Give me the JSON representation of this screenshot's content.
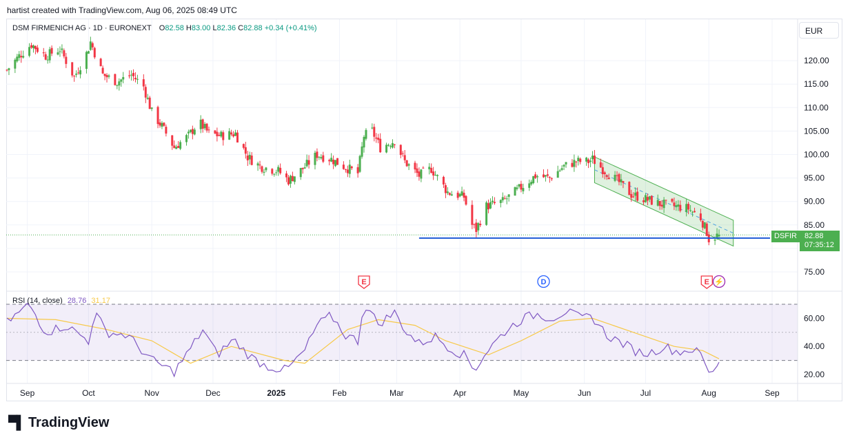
{
  "header": {
    "text": "hartist created with TradingView.com, Aug 06, 2025 08:49 UTC"
  },
  "legend": {
    "symbol": "DSM FIRMENICH AG · 1D · EURONEXT",
    "o_label": "O",
    "o": "82.58",
    "h_label": "H",
    "h": "83.00",
    "l_label": "L",
    "l": "82.36",
    "c_label": "C",
    "c": "82.88",
    "change": "+0.34 (+0.41%)"
  },
  "currency": "EUR",
  "last_price": {
    "ticker": "DSFIR",
    "price": "82.88",
    "countdown": "07:35:12"
  },
  "rsi_legend": {
    "label": "RSI (14, close)",
    "rsi": "28.76",
    "ma": "31.17"
  },
  "events": [
    {
      "icon": "earnings-icon",
      "letter": "E",
      "date": "2025-02-13",
      "color": "#f23645"
    },
    {
      "icon": "dividend-icon",
      "letter": "D",
      "date": "2025-05-12",
      "color": "#2962ff"
    },
    {
      "icon": "earnings-icon",
      "letter": "E",
      "date": "2025-07-31",
      "color": "#f23645"
    },
    {
      "icon": "split-icon",
      "letter": "⚡",
      "date": "2025-08-06",
      "color": "#9c27b0"
    }
  ],
  "colors": {
    "up": "#4caf50",
    "down": "#f23645",
    "rsi": "#7e57c2",
    "rsi_ma": "#f7c948",
    "support": "#1e5ad6",
    "channel": "#4caf50"
  },
  "logo": {
    "text": "TradingView"
  },
  "chart_data": {
    "type": "candlestick",
    "price_axis": {
      "ticks": [
        "75.00",
        "80.00",
        "85.00",
        "90.00",
        "95.00",
        "100.00",
        "105.00",
        "110.00",
        "115.00",
        "120.00"
      ],
      "range": [
        71.5,
        127
      ]
    },
    "time_axis": {
      "labels": [
        "Sep",
        "Oct",
        "Nov",
        "Dec",
        "2025",
        "Feb",
        "Mar",
        "Apr",
        "May",
        "Jun",
        "Jul",
        "Aug",
        "Sep"
      ]
    },
    "close_path": [
      [
        "2024-08-22",
        118.0
      ],
      [
        "2024-08-28",
        121.0
      ],
      [
        "2024-09-03",
        123.5
      ],
      [
        "2024-09-10",
        121.0
      ],
      [
        "2024-09-17",
        122.5
      ],
      [
        "2024-09-24",
        116.5
      ],
      [
        "2024-09-30",
        121.5
      ],
      [
        "2024-10-02",
        124.0
      ],
      [
        "2024-10-08",
        117.0
      ],
      [
        "2024-10-15",
        115.5
      ],
      [
        "2024-10-22",
        117.0
      ],
      [
        "2024-10-28",
        114.5
      ],
      [
        "2024-11-01",
        109.0
      ],
      [
        "2024-11-06",
        106.0
      ],
      [
        "2024-11-12",
        101.5
      ],
      [
        "2024-11-19",
        104.0
      ],
      [
        "2024-11-24",
        107.0
      ],
      [
        "2024-11-29",
        104.5
      ],
      [
        "2024-12-05",
        104.0
      ],
      [
        "2024-12-12",
        104.5
      ],
      [
        "2024-12-18",
        99.5
      ],
      [
        "2024-12-24",
        97.5
      ],
      [
        "2025-01-02",
        96.5
      ],
      [
        "2025-01-07",
        94.5
      ],
      [
        "2025-01-14",
        97.0
      ],
      [
        "2025-01-21",
        100.0
      ],
      [
        "2025-01-28",
        99.0
      ],
      [
        "2025-02-03",
        97.5
      ],
      [
        "2025-02-10",
        96.0
      ],
      [
        "2025-02-13",
        104.0
      ],
      [
        "2025-02-17",
        105.0
      ],
      [
        "2025-02-21",
        101.5
      ],
      [
        "2025-02-28",
        103.0
      ],
      [
        "2025-03-05",
        98.5
      ],
      [
        "2025-03-12",
        95.5
      ],
      [
        "2025-03-18",
        97.0
      ],
      [
        "2025-03-26",
        92.0
      ],
      [
        "2025-04-03",
        91.0
      ],
      [
        "2025-04-07",
        85.0
      ],
      [
        "2025-04-09",
        84.0
      ],
      [
        "2025-04-14",
        89.0
      ],
      [
        "2025-04-22",
        90.0
      ],
      [
        "2025-05-01",
        93.0
      ],
      [
        "2025-05-08",
        95.5
      ],
      [
        "2025-05-15",
        95.0
      ],
      [
        "2025-05-22",
        97.5
      ],
      [
        "2025-05-28",
        98.5
      ],
      [
        "2025-06-03",
        98.5
      ],
      [
        "2025-06-05",
        99.0
      ],
      [
        "2025-06-11",
        96.5
      ],
      [
        "2025-06-17",
        94.5
      ],
      [
        "2025-06-24",
        91.5
      ],
      [
        "2025-07-01",
        90.5
      ],
      [
        "2025-07-08",
        89.5
      ],
      [
        "2025-07-15",
        89.0
      ],
      [
        "2025-07-22",
        88.5
      ],
      [
        "2025-07-28",
        86.5
      ],
      [
        "2025-07-31",
        83.5
      ],
      [
        "2025-08-01",
        82.0
      ],
      [
        "2025-08-06",
        82.88
      ]
    ],
    "support_line": {
      "value": 82.2,
      "from": "2025-03-12",
      "to": "2025-08-31"
    },
    "descending_channel": {
      "upper": [
        [
          "2025-06-06",
          99.5
        ],
        [
          "2025-08-13",
          86.0
        ]
      ],
      "lower": [
        [
          "2025-06-06",
          94.0
        ],
        [
          "2025-08-13",
          80.5
        ]
      ]
    },
    "rsi": {
      "axis_ticks": [
        "20.00",
        "40.00",
        "60.00"
      ],
      "upper_band": 70,
      "middle_band": 50,
      "lower_band": 30,
      "path": [
        [
          "2024-08-22",
          57
        ],
        [
          "2024-09-02",
          70
        ],
        [
          "2024-09-10",
          50
        ],
        [
          "2024-09-20",
          55
        ],
        [
          "2024-10-01",
          44
        ],
        [
          "2024-10-04",
          64
        ],
        [
          "2024-10-10",
          50
        ],
        [
          "2024-10-20",
          48
        ],
        [
          "2024-11-01",
          30
        ],
        [
          "2024-11-12",
          22
        ],
        [
          "2024-11-19",
          36
        ],
        [
          "2024-11-26",
          52
        ],
        [
          "2024-12-03",
          34
        ],
        [
          "2024-12-11",
          45
        ],
        [
          "2024-12-19",
          33
        ],
        [
          "2024-12-27",
          26
        ],
        [
          "2025-01-06",
          23
        ],
        [
          "2025-01-15",
          37
        ],
        [
          "2025-01-21",
          55
        ],
        [
          "2025-01-28",
          62
        ],
        [
          "2025-02-04",
          48
        ],
        [
          "2025-02-10",
          44
        ],
        [
          "2025-02-13",
          71
        ],
        [
          "2025-02-20",
          56
        ],
        [
          "2025-02-28",
          64
        ],
        [
          "2025-03-06",
          50
        ],
        [
          "2025-03-12",
          42
        ],
        [
          "2025-03-20",
          47
        ],
        [
          "2025-03-28",
          38
        ],
        [
          "2025-04-04",
          33
        ],
        [
          "2025-04-08",
          23
        ],
        [
          "2025-04-15",
          38
        ],
        [
          "2025-04-24",
          52
        ],
        [
          "2025-05-02",
          60
        ],
        [
          "2025-05-09",
          63
        ],
        [
          "2025-05-16",
          60
        ],
        [
          "2025-05-23",
          65
        ],
        [
          "2025-05-30",
          60
        ],
        [
          "2025-06-05",
          61
        ],
        [
          "2025-06-12",
          48
        ],
        [
          "2025-06-20",
          42
        ],
        [
          "2025-06-27",
          36
        ],
        [
          "2025-07-03",
          35
        ],
        [
          "2025-07-10",
          40
        ],
        [
          "2025-07-17",
          36
        ],
        [
          "2025-07-24",
          38
        ],
        [
          "2025-07-29",
          33
        ],
        [
          "2025-08-01",
          20
        ],
        [
          "2025-08-06",
          28.76
        ]
      ],
      "ma_path": [
        [
          "2024-08-22",
          60
        ],
        [
          "2024-09-15",
          59
        ],
        [
          "2024-10-10",
          52
        ],
        [
          "2024-11-01",
          44
        ],
        [
          "2024-11-20",
          28
        ],
        [
          "2024-12-10",
          40
        ],
        [
          "2025-01-05",
          30
        ],
        [
          "2025-01-15",
          28
        ],
        [
          "2025-02-05",
          52
        ],
        [
          "2025-02-20",
          59
        ],
        [
          "2025-03-10",
          55
        ],
        [
          "2025-03-25",
          44
        ],
        [
          "2025-04-15",
          34
        ],
        [
          "2025-05-01",
          44
        ],
        [
          "2025-05-20",
          58
        ],
        [
          "2025-06-05",
          60
        ],
        [
          "2025-06-25",
          50
        ],
        [
          "2025-07-15",
          40
        ],
        [
          "2025-07-29",
          37
        ],
        [
          "2025-08-06",
          31.17
        ]
      ]
    }
  }
}
